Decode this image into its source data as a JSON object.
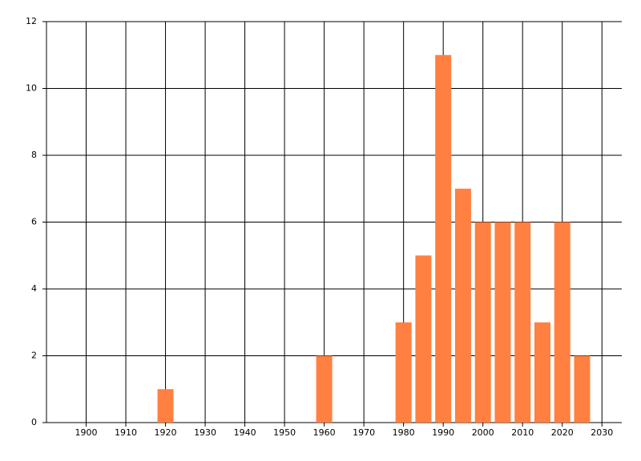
{
  "chart_data": {
    "type": "bar",
    "x": [
      1920,
      1960,
      1980,
      1985,
      1990,
      1995,
      2000,
      2005,
      2010,
      2015,
      2020,
      2025
    ],
    "values": [
      1,
      2,
      3,
      5,
      11,
      7,
      6,
      6,
      6,
      3,
      6,
      2
    ],
    "color": "#ff8040",
    "xlim": [
      1890,
      2035
    ],
    "xticks": [
      1900,
      1910,
      1920,
      1930,
      1940,
      1950,
      1960,
      1970,
      1980,
      1990,
      2000,
      2010,
      2020,
      2030
    ],
    "ylim": [
      0,
      12
    ],
    "yticks": [
      0,
      2,
      4,
      6,
      8,
      10,
      12
    ],
    "grid": true
  }
}
